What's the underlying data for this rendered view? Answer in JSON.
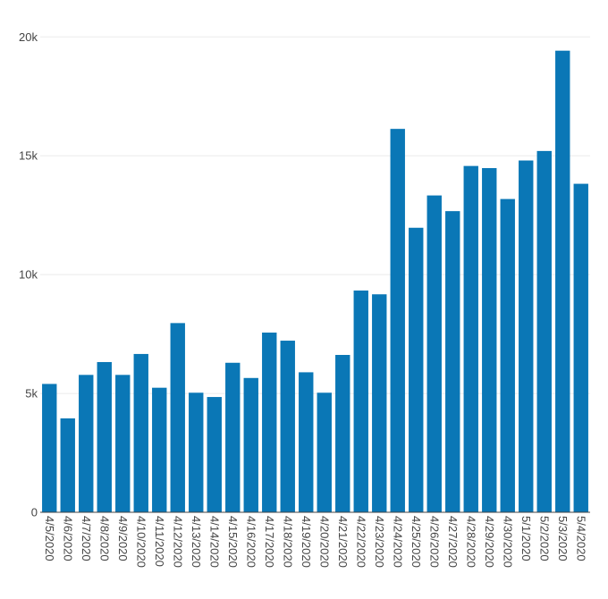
{
  "chart_data": {
    "type": "bar",
    "title": "",
    "xlabel": "",
    "ylabel": "",
    "ylim": [
      0,
      20800
    ],
    "grid": "horizontal",
    "bar_color": "#0a77b6",
    "y_ticks": [
      {
        "value": 0,
        "label": "0"
      },
      {
        "value": 5000,
        "label": "5k"
      },
      {
        "value": 10000,
        "label": "10k"
      },
      {
        "value": 15000,
        "label": "15k"
      },
      {
        "value": 20000,
        "label": "20k"
      }
    ],
    "categories": [
      "4/5/2020",
      "4/6/2020",
      "4/7/2020",
      "4/8/2020",
      "4/9/2020",
      "4/10/2020",
      "4/11/2020",
      "4/12/2020",
      "4/13/2020",
      "4/14/2020",
      "4/15/2020",
      "4/16/2020",
      "4/17/2020",
      "4/18/2020",
      "4/19/2020",
      "4/20/2020",
      "4/21/2020",
      "4/22/2020",
      "4/23/2020",
      "4/24/2020",
      "4/25/2020",
      "4/26/2020",
      "4/27/2020",
      "4/28/2020",
      "4/29/2020",
      "4/30/2020",
      "5/1/2020",
      "5/2/2020",
      "5/3/2020",
      "5/4/2020"
    ],
    "values": [
      5400,
      3950,
      5780,
      6320,
      5780,
      6660,
      5240,
      7960,
      5030,
      4850,
      6290,
      5650,
      7560,
      7220,
      5890,
      5030,
      6620,
      9330,
      9170,
      16130,
      11970,
      13330,
      12670,
      14570,
      14480,
      13180,
      14800,
      15200,
      19420,
      13820
    ]
  }
}
